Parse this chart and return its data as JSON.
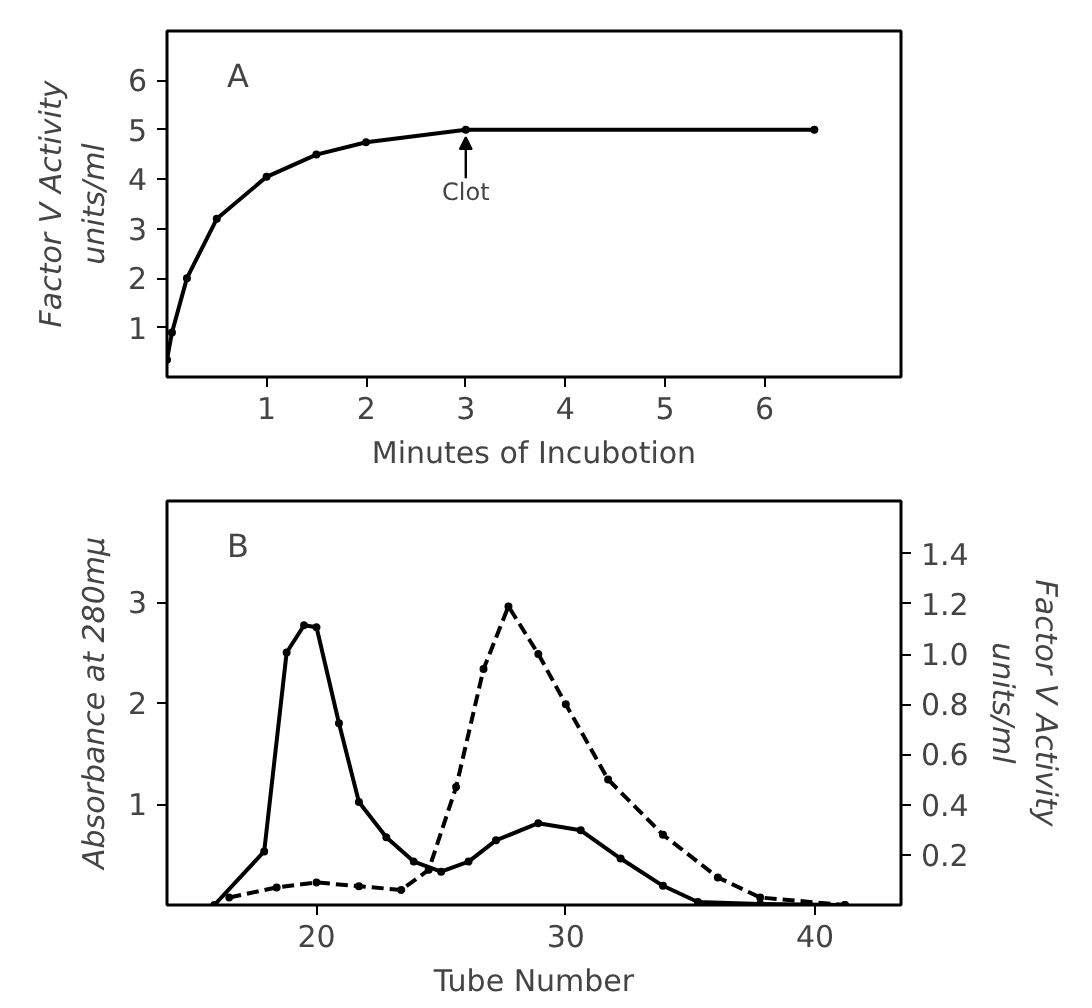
{
  "chart_data": [
    {
      "type": "line",
      "xlabel": "Minutes of Incubotion",
      "ylabel": "Factor Ⅴ Activity\nunits/ml",
      "xlim": [
        0,
        7.37
      ],
      "ylim": [
        0,
        7
      ],
      "xticks": [
        1,
        2,
        3,
        4,
        5,
        6
      ],
      "yticks": [
        1,
        2,
        3,
        4,
        5,
        6
      ],
      "grid": false,
      "marker": "circle",
      "line_style": "solid",
      "annotations": [
        "A",
        {
          "text": "Clot",
          "x": 3,
          "y": 5
        }
      ],
      "series": [
        {
          "color": "#000000",
          "x": [
            0,
            0.05,
            0.2,
            0.5,
            1,
            1.5,
            2,
            3,
            6.5
          ],
          "values": [
            0.35,
            0.9,
            2.0,
            3.2,
            4.05,
            4.5,
            4.75,
            5.0,
            5.0
          ]
        }
      ]
    },
    {
      "type": "line",
      "xlabel": "Tube Number",
      "ylabel": "Absorbance at 280mμ",
      "y2label": "Factor Ⅴ Activity\nunits/ml",
      "xlim": [
        14,
        43.45
      ],
      "ylim": [
        0,
        4
      ],
      "y2lim": [
        0,
        1.61
      ],
      "xticks": [
        20,
        30,
        40
      ],
      "yticks": [
        1,
        2,
        3
      ],
      "y2ticks": [
        0.2,
        0.4,
        0.6,
        0.8,
        {
          "value": 1.0,
          "label": "1.0"
        },
        1.2,
        1.4
      ],
      "grid": false,
      "marker": "circle",
      "annotations": [
        "B"
      ],
      "series": [
        {
          "color": "#000000",
          "line_style": "solid",
          "x": [
            15.9,
            17.9,
            18.8,
            19.5,
            20,
            20.9,
            21.7,
            22.8,
            23.9,
            25,
            26.1,
            27.2,
            28.9,
            30.6,
            32.2,
            33.9,
            35.3,
            37.8,
            41.2
          ],
          "values": [
            0,
            0.53,
            2.5,
            2.77,
            2.75,
            1.8,
            1.02,
            0.67,
            0.43,
            0.33,
            0.43,
            0.64,
            0.81,
            0.74,
            0.46,
            0.19,
            0.03,
            0.01,
            0
          ]
        },
        {
          "color": "#000000",
          "line_style": "dashed",
          "axis": "y2",
          "x": [
            16.5,
            18.4,
            20,
            21.7,
            23.4,
            24.5,
            25.6,
            26.7,
            27.7,
            28.9,
            30,
            31.7,
            33.9,
            36.1,
            37.8,
            41.2
          ],
          "values": [
            0.03,
            0.07,
            0.09,
            0.075,
            0.06,
            0.14,
            0.47,
            0.94,
            1.19,
            1.0,
            0.8,
            0.5,
            0.28,
            0.11,
            0.03,
            0
          ]
        }
      ]
    }
  ]
}
